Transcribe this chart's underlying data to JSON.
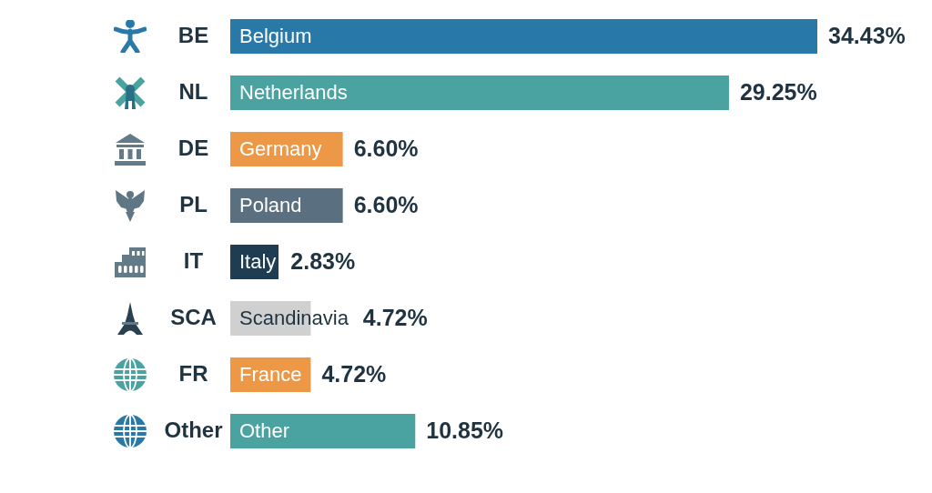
{
  "chart_data": {
    "type": "bar",
    "orientation": "horizontal",
    "categories": [
      "BE",
      "NL",
      "DE",
      "PL",
      "IT",
      "SCA",
      "FR",
      "Other"
    ],
    "values": [
      34.43,
      29.25,
      6.6,
      6.6,
      2.83,
      4.72,
      4.72,
      10.85
    ],
    "colors": [
      "#2878a8",
      "#4aa3a0",
      "#ec9847",
      "#5a6f80",
      "#1f3d52",
      "#d0d0d0",
      "#ec9847",
      "#4aa3a0"
    ],
    "value_labels": [
      "34.43%",
      "29.25%",
      "6.60%",
      "6.60%",
      "2.83%",
      "4.72%",
      "4.72%",
      "10.85%"
    ],
    "annotations": [
      "Belgium",
      "Netherlands",
      "Germany",
      "Poland",
      "Italy",
      "Scandinavia",
      "France",
      "Other"
    ],
    "tick_labels": "y"
  }
}
